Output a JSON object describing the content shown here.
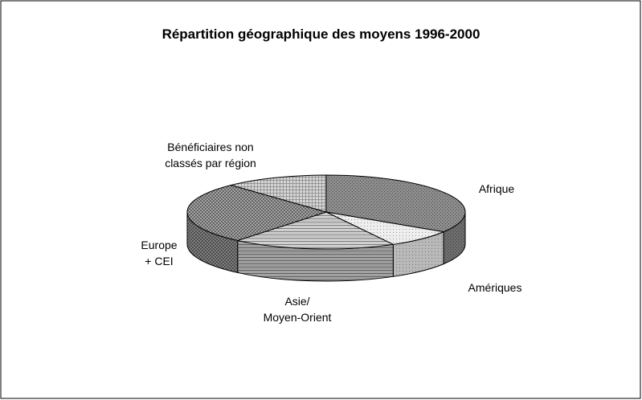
{
  "chart_data": {
    "type": "pie3d",
    "title": "Répartition géographique des moyens 1996-2000",
    "categories": [
      "Afrique",
      "Amériques",
      "Asie/\nMoyen-Orient",
      "Europe\n+ CEI",
      "Bénéficiaires non\nclassés par région"
    ],
    "values": [
      34,
      8,
      19,
      27,
      12
    ],
    "colors": [
      "#8c8c8c",
      "#eeeeee",
      "#dddddd",
      "#b4b4b4",
      "#d6d6d6"
    ]
  }
}
